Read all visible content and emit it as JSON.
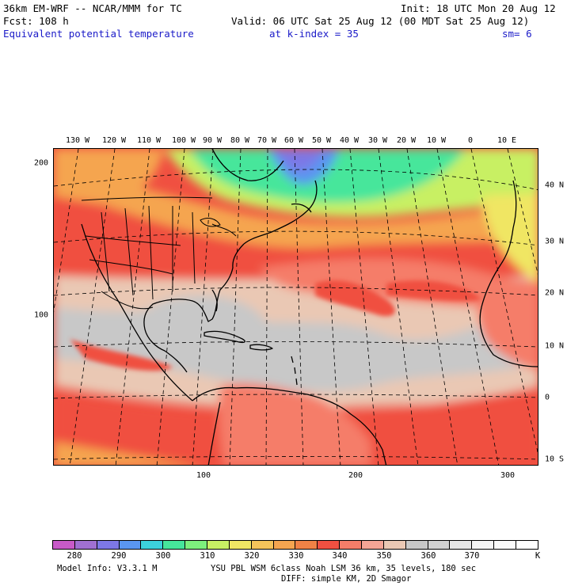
{
  "header": {
    "model_title": "36km EM-WRF -- NCAR/MMM for TC",
    "init": "Init: 18 UTC Mon 20 Aug 12",
    "forecast": "Fcst:  108 h",
    "valid": "Valid: 06 UTC Sat 25 Aug 12 (00 MDT Sat 25 Aug 12)",
    "field_name": "Equivalent potential temperature",
    "level": "at k-index =  35",
    "smoothing": "sm= 6"
  },
  "map": {
    "longitude_labels_top": [
      "130 W",
      "120 W",
      "110 W",
      "100 W",
      "90 W",
      "80 W",
      "70 W",
      "60 W",
      "50 W",
      "40 W",
      "30 W",
      "20 W",
      "10 W",
      "0",
      "10 E"
    ],
    "latitude_labels_right": [
      "40 N",
      "30 N",
      "20 N",
      "10 N",
      "0",
      "10 S"
    ],
    "grid_labels_left": [
      "200",
      "100"
    ],
    "grid_labels_bottom": [
      "100",
      "200",
      "300"
    ]
  },
  "colorbar": {
    "colors": [
      "#c85ac8",
      "#a070d2",
      "#7d78e6",
      "#5a96f0",
      "#3cd2dc",
      "#46e69b",
      "#7df07d",
      "#c8f064",
      "#f0e664",
      "#f5c35a",
      "#f5a550",
      "#f08246",
      "#f05041",
      "#f57d69",
      "#f5a596",
      "#eac8b4",
      "#c8c8c8",
      "#d2d2d2",
      "#e6e6e6",
      "#f5f5f5",
      "#fafafa",
      "#ffffff"
    ],
    "labels": [
      "280",
      "290",
      "300",
      "310",
      "320",
      "330",
      "340",
      "350",
      "360",
      "370"
    ],
    "units": "K"
  },
  "footer": {
    "model_info": "Model Info: V3.3.1 M",
    "physics": "YSU PBL  WSM 6class  Noah LSM  36 km,   35 levels,  180 sec",
    "diffusion": "DIFF: simple KM, 2D Smagor"
  }
}
